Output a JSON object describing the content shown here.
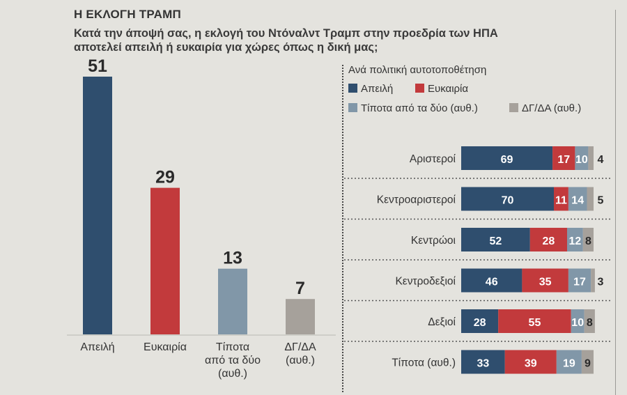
{
  "header": {
    "title": "Η ΕΚΛΟΓΗ ΤΡΑΜΠ",
    "question_line1": "Κατά την άποψή σας, η εκλογή του Ντόναλντ Τραμπ στην προεδρία των ΗΠΑ",
    "question_line2": "αποτελεί απειλή ή ευκαιρία για χώρες όπως η δική μας;"
  },
  "colors": {
    "threat": "#2f4e6e",
    "opportunity": "#c23a3c",
    "neither": "#8197a8",
    "dk": "#a6a19b"
  },
  "chart_data": [
    {
      "type": "bar",
      "title": "",
      "categories": [
        "Απειλή",
        "Ευκαιρία",
        "Τίποτα από τα δύο (αυθ.)",
        "ΔΓ/ΔΑ (αυθ.)"
      ],
      "category_label_lines": [
        [
          "Απειλή"
        ],
        [
          "Ευκαιρία"
        ],
        [
          "Τίποτα",
          "από τα δύο",
          "(αυθ.)"
        ],
        [
          "ΔΓ/ΔΑ",
          "(αυθ.)"
        ]
      ],
      "values": [
        51,
        29,
        13,
        7
      ],
      "value_labels": [
        "51",
        "29",
        "13",
        "7"
      ],
      "ylim": [
        0,
        51
      ],
      "xlabel": "",
      "ylabel": "",
      "grid": false
    },
    {
      "type": "bar",
      "orientation": "horizontal",
      "stacked": true,
      "title": "Ανά πολιτική αυτοτοποθέτηση",
      "categories": [
        "Αριστεροί",
        "Κεντροαριστεροί",
        "Κεντρώοι",
        "Κεντροδεξιοί",
        "Δεξιοί",
        "Τίποτα (αυθ.)"
      ],
      "series": [
        {
          "name": "Απειλή",
          "values": [
            69,
            70,
            52,
            46,
            28,
            33
          ]
        },
        {
          "name": "Ευκαιρία",
          "values": [
            17,
            11,
            28,
            35,
            55,
            39
          ]
        },
        {
          "name": "Τίποτα από τα δύο (αυθ.)",
          "values": [
            10,
            14,
            12,
            17,
            10,
            19
          ]
        },
        {
          "name": "ΔΓ/ΔΑ (αυθ.)",
          "values": [
            4,
            5,
            8,
            3,
            8,
            9
          ]
        }
      ],
      "xlim": [
        0,
        100
      ],
      "legend": "top-left",
      "grid": false
    }
  ]
}
